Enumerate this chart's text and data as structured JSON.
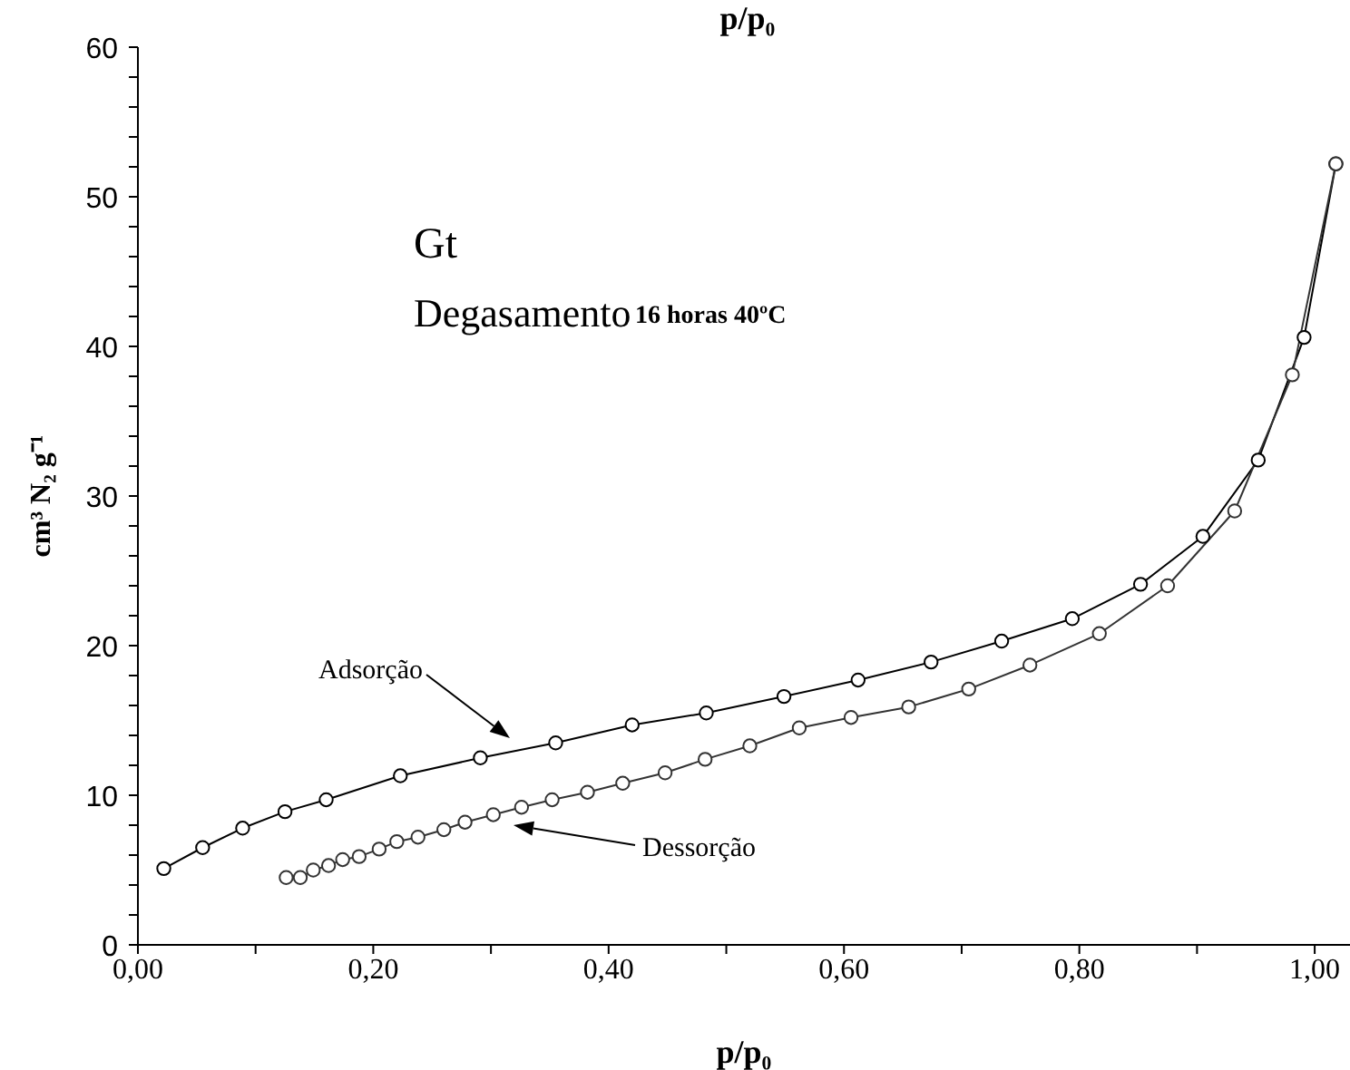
{
  "chart_data": {
    "type": "line",
    "title": "p/p₀",
    "xlabel": "p/p₀",
    "ylabel": "cm³ N₂ g⁻¹",
    "xlim": [
      0,
      1.03
    ],
    "ylim": [
      0,
      60
    ],
    "xticks": [
      {
        "value": 0,
        "label": "0,00"
      },
      {
        "value": 0.1,
        "label": null
      },
      {
        "value": 0.2,
        "label": "0,20"
      },
      {
        "value": 0.3,
        "label": null
      },
      {
        "value": 0.4,
        "label": "0,40"
      },
      {
        "value": 0.5,
        "label": null
      },
      {
        "value": 0.6,
        "label": "0,60"
      },
      {
        "value": 0.7,
        "label": null
      },
      {
        "value": 0.8,
        "label": "0,80"
      },
      {
        "value": 0.9,
        "label": null
      },
      {
        "value": 1,
        "label": "1,00"
      }
    ],
    "yticks": [
      0,
      {
        "value": 2,
        "label": null
      },
      {
        "value": 4,
        "label": null
      },
      {
        "value": 6,
        "label": null
      },
      {
        "value": 8,
        "label": null
      },
      10,
      {
        "value": 12,
        "label": null
      },
      {
        "value": 14,
        "label": null
      },
      {
        "value": 16,
        "label": null
      },
      {
        "value": 18,
        "label": null
      },
      20,
      {
        "value": 22,
        "label": null
      },
      {
        "value": 24,
        "label": null
      },
      {
        "value": 26,
        "label": null
      },
      {
        "value": 28,
        "label": null
      },
      30,
      {
        "value": 32,
        "label": null
      },
      {
        "value": 34,
        "label": null
      },
      {
        "value": 36,
        "label": null
      },
      {
        "value": 38,
        "label": null
      },
      40,
      {
        "value": 42,
        "label": null
      },
      {
        "value": 44,
        "label": null
      },
      {
        "value": 46,
        "label": null
      },
      {
        "value": 48,
        "label": null
      },
      50,
      {
        "value": 52,
        "label": null
      },
      {
        "value": 54,
        "label": null
      },
      {
        "value": 56,
        "label": null
      },
      {
        "value": 58,
        "label": null
      },
      60
    ],
    "grid": false,
    "marker": "circle",
    "line_style": "solid",
    "series": [
      {
        "color": "#000000",
        "x": [
          0.022,
          0.055,
          0.089,
          0.125,
          0.16,
          0.223,
          0.291,
          0.355,
          0.42,
          0.483,
          0.549,
          0.612,
          0.674,
          0.734,
          0.794,
          0.852,
          0.905,
          0.952,
          0.991,
          1.018
        ],
        "values": [
          5.1,
          6.5,
          7.8,
          8.9,
          9.7,
          11.3,
          12.5,
          13.5,
          14.7,
          15.5,
          16.6,
          17.7,
          18.9,
          20.3,
          21.8,
          24.1,
          27.3,
          32.4,
          40.6,
          52.2
        ]
      },
      {
        "color": "#333333",
        "x": [
          1.018,
          0.981,
          0.932,
          0.875,
          0.817,
          0.758,
          0.706,
          0.655,
          0.606,
          0.562,
          0.52,
          0.482,
          0.448,
          0.412,
          0.382,
          0.352,
          0.326,
          0.302,
          0.278,
          0.26,
          0.238,
          0.22,
          0.205,
          0.188,
          0.174,
          0.162,
          0.149,
          0.138,
          0.126
        ],
        "values": [
          52.2,
          38.1,
          29.0,
          24.0,
          20.8,
          18.7,
          17.1,
          15.9,
          15.2,
          14.5,
          13.3,
          12.4,
          11.5,
          10.8,
          10.2,
          9.7,
          9.2,
          8.7,
          8.2,
          7.7,
          7.2,
          6.9,
          6.4,
          5.9,
          5.7,
          5.3,
          5.0,
          4.5,
          4.5
        ]
      }
    ],
    "annotations": [
      "Gt",
      "Degasamento",
      "16 horas 40ºC",
      "Adsorção",
      "Dessorção"
    ]
  }
}
